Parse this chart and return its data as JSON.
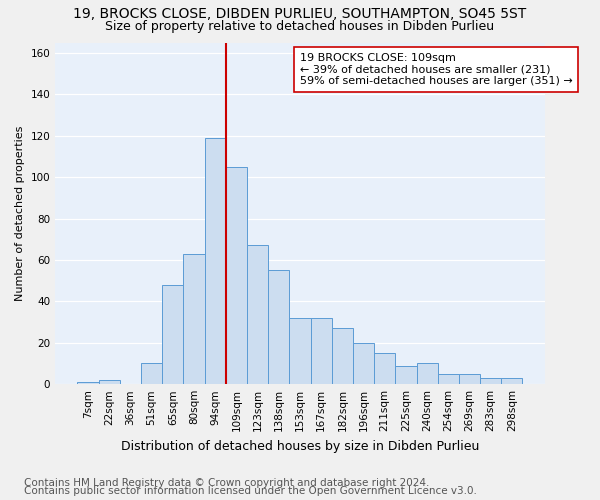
{
  "title1": "19, BROCKS CLOSE, DIBDEN PURLIEU, SOUTHAMPTON, SO45 5ST",
  "title2": "Size of property relative to detached houses in Dibden Purlieu",
  "xlabel": "Distribution of detached houses by size in Dibden Purlieu",
  "ylabel": "Number of detached properties",
  "categories": [
    "7sqm",
    "22sqm",
    "36sqm",
    "51sqm",
    "65sqm",
    "80sqm",
    "94sqm",
    "109sqm",
    "123sqm",
    "138sqm",
    "153sqm",
    "167sqm",
    "182sqm",
    "196sqm",
    "211sqm",
    "225sqm",
    "240sqm",
    "254sqm",
    "269sqm",
    "283sqm",
    "298sqm"
  ],
  "values": [
    1,
    2,
    0,
    10,
    48,
    63,
    119,
    105,
    67,
    55,
    32,
    32,
    27,
    20,
    15,
    9,
    10,
    5,
    5,
    3,
    3
  ],
  "bar_color": "#ccddf0",
  "bar_edge_color": "#5b9bd5",
  "vline_color": "#cc0000",
  "annotation_line1": "19 BROCKS CLOSE: 109sqm",
  "annotation_line2": "← 39% of detached houses are smaller (231)",
  "annotation_line3": "59% of semi-detached houses are larger (351) →",
  "annotation_box_color": "#ffffff",
  "annotation_box_edge": "#cc0000",
  "footnote1": "Contains HM Land Registry data © Crown copyright and database right 2024.",
  "footnote2": "Contains public sector information licensed under the Open Government Licence v3.0.",
  "ylim": [
    0,
    165
  ],
  "bg_color": "#e8f0fa",
  "grid_color": "#ffffff",
  "fig_bg_color": "#f0f0f0",
  "title1_fontsize": 10,
  "title2_fontsize": 9,
  "xlabel_fontsize": 9,
  "ylabel_fontsize": 8,
  "tick_fontsize": 7.5,
  "annot_fontsize": 8,
  "footnote_fontsize": 7.5
}
